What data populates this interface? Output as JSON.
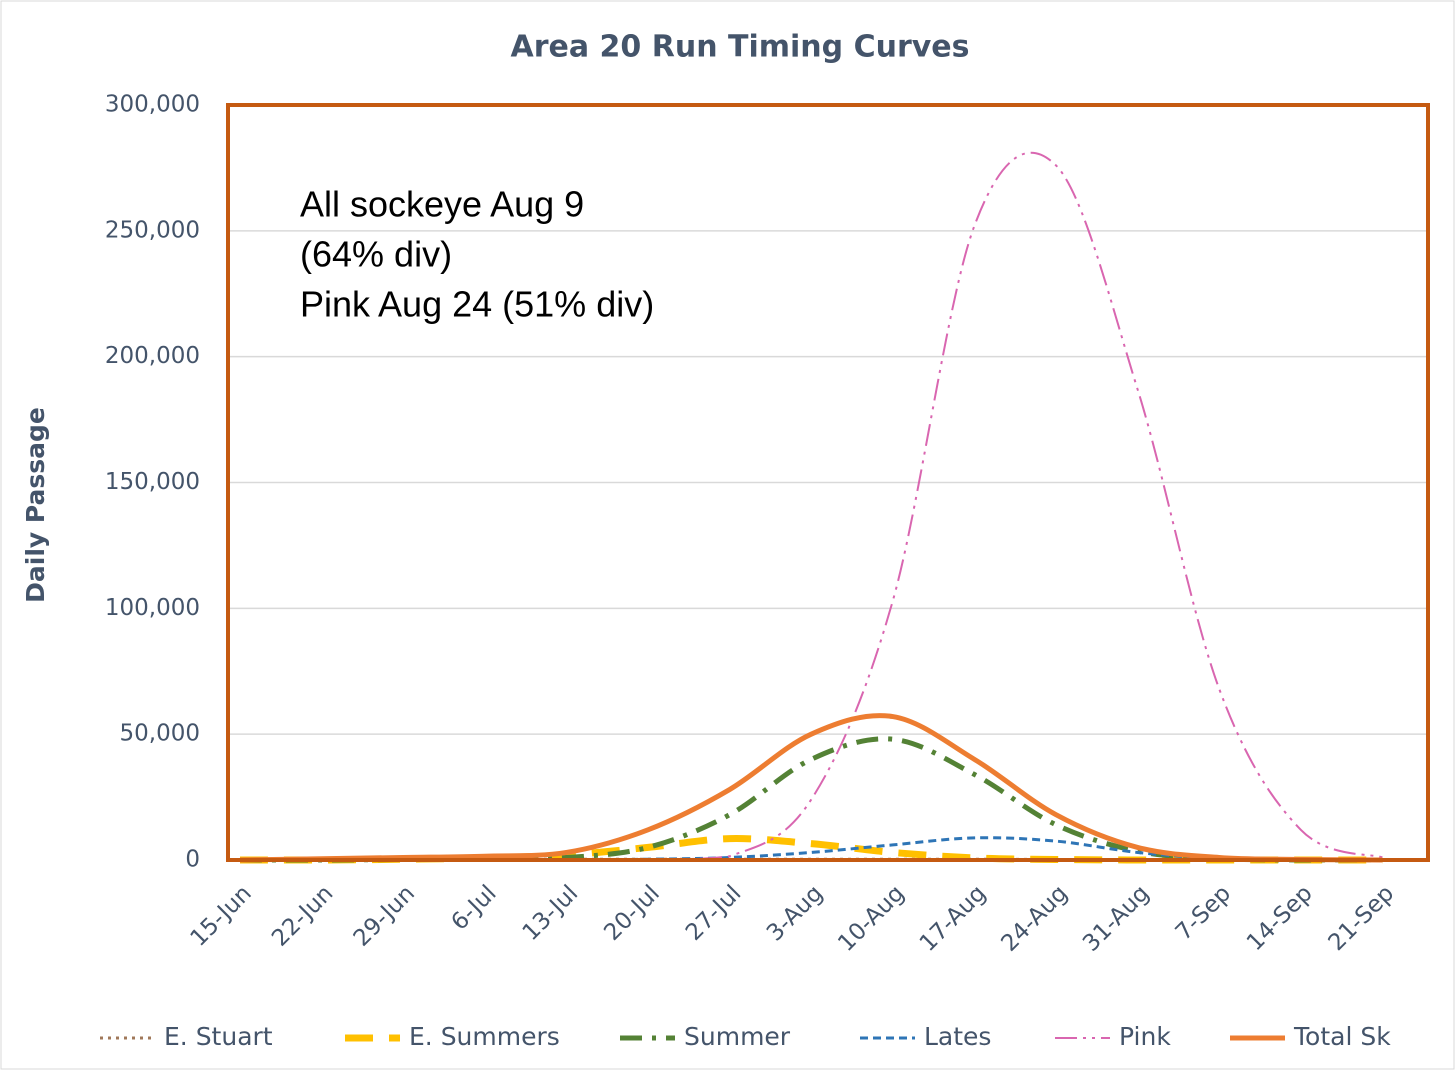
{
  "chart_data": {
    "type": "line",
    "title": "Area 20 Run Timing Curves",
    "y_label": "Daily Passage",
    "annotation": [
      "All sockeye Aug 9",
      "(64% div)",
      "Pink Aug 24 (51% div)"
    ],
    "categories": [
      "15-Jun",
      "22-Jun",
      "29-Jun",
      "6-Jul",
      "13-Jul",
      "20-Jul",
      "27-Jul",
      "3-Aug",
      "10-Aug",
      "17-Aug",
      "24-Aug",
      "31-Aug",
      "7-Sep",
      "14-Sep",
      "21-Sep"
    ],
    "series": [
      {
        "name": "E. Stuart",
        "color": "#a0785a",
        "dash": "3 5",
        "width": 3,
        "values": [
          0,
          0,
          100,
          200,
          300,
          300,
          300,
          300,
          300,
          300,
          200,
          100,
          0,
          0,
          0
        ]
      },
      {
        "name": "E. Summers",
        "color": "#ffc000",
        "dash": "28 16",
        "width": 7,
        "values": [
          0,
          0,
          300,
          800,
          2000,
          5000,
          8500,
          6500,
          3000,
          800,
          200,
          0,
          0,
          0,
          0
        ]
      },
      {
        "name": "Summer",
        "color": "#548235",
        "dash": "22 10 4 10",
        "width": 5,
        "values": [
          0,
          0,
          200,
          500,
          1000,
          5000,
          18000,
          40000,
          48000,
          34000,
          14000,
          3500,
          500,
          0,
          0
        ]
      },
      {
        "name": "Lates",
        "color": "#2e75b6",
        "dash": "8 5",
        "width": 3,
        "values": [
          0,
          0,
          0,
          0,
          100,
          300,
          1000,
          3000,
          6000,
          8800,
          7500,
          3000,
          500,
          0,
          0
        ]
      },
      {
        "name": "Pink",
        "color": "#d966b0",
        "dash": "22 6 3 6 3 6",
        "width": 2,
        "values": [
          0,
          0,
          0,
          0,
          0,
          200,
          1500,
          24000,
          103000,
          252000,
          276000,
          187000,
          68000,
          12000,
          1000
        ]
      },
      {
        "name": "Total Sk",
        "color": "#ed7d31",
        "dash": "",
        "width": 5,
        "values": [
          0,
          500,
          1000,
          1500,
          3000,
          12000,
          28000,
          50000,
          57000,
          40000,
          18000,
          5000,
          1000,
          200,
          0
        ]
      }
    ],
    "ylim": [
      0,
      300000
    ],
    "yticks": [
      0,
      {
        "value": 50000,
        "label": "50,000"
      },
      {
        "value": 100000,
        "label": "100,000"
      },
      {
        "value": 150000,
        "label": "150,000"
      },
      {
        "value": 200000,
        "label": "200,000"
      },
      {
        "value": 250000,
        "label": "250,000"
      },
      {
        "value": 300000,
        "label": "300,000"
      }
    ],
    "grid": true,
    "legend": "bottom",
    "frame_color": "#c55a11"
  }
}
